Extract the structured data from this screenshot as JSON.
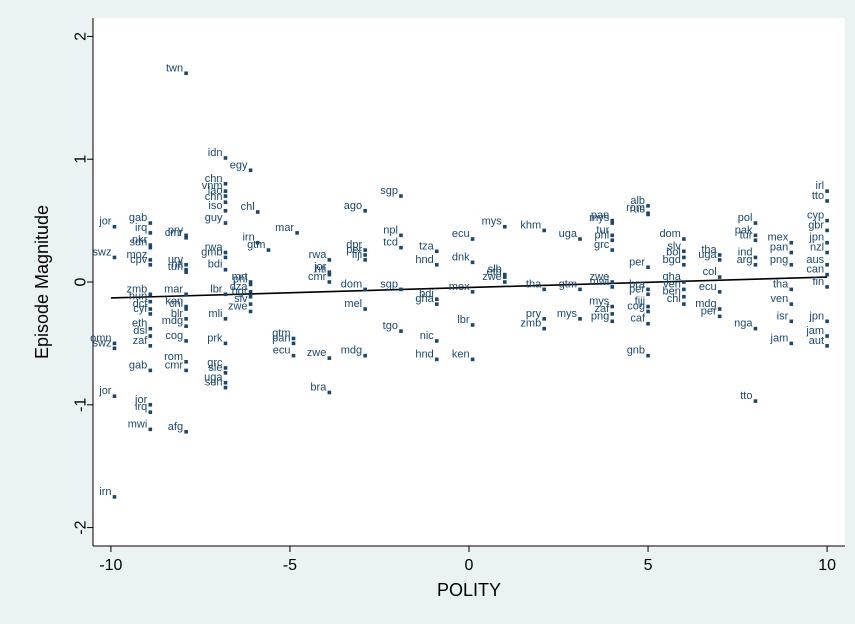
{
  "chart_data": {
    "type": "scatter",
    "xlabel": "POLITY",
    "ylabel": "Episode Magnitude",
    "xlim": [
      -10.5,
      10.5
    ],
    "ylim": [
      -2.15,
      2.15
    ],
    "xticks": [
      -10,
      -5,
      0,
      5,
      10
    ],
    "yticks": [
      -2,
      -1,
      0,
      1,
      2
    ],
    "grid": false,
    "legend": "none",
    "colors": {
      "point": "#1a476f",
      "fit_line": "#000000",
      "background": "#eaf2f3",
      "plot_bg": "#ffffff"
    },
    "fit_line": {
      "x": [
        -10,
        10
      ],
      "y": [
        -0.13,
        0.04
      ]
    },
    "points": [
      {
        "label": "twn",
        "x": -7.9,
        "y": 1.7
      },
      {
        "label": "idn",
        "x": -6.8,
        "y": 1.01
      },
      {
        "label": "egy",
        "x": -6.1,
        "y": 0.91
      },
      {
        "label": "chn",
        "x": -6.8,
        "y": 0.8
      },
      {
        "label": "vnm",
        "x": -6.8,
        "y": 0.74
      },
      {
        "label": "lao",
        "x": -6.8,
        "y": 0.7
      },
      {
        "label": "chn",
        "x": -6.8,
        "y": 0.65
      },
      {
        "label": "iso",
        "x": -6.8,
        "y": 0.58
      },
      {
        "label": "chl",
        "x": -5.9,
        "y": 0.57
      },
      {
        "label": "mar",
        "x": -4.8,
        "y": 0.4
      },
      {
        "label": "irn",
        "x": -5.9,
        "y": 0.32
      },
      {
        "label": "gtm",
        "x": -5.6,
        "y": 0.26
      },
      {
        "label": "rwa",
        "x": -6.8,
        "y": 0.24
      },
      {
        "label": "gab",
        "x": -8.9,
        "y": 0.48
      },
      {
        "label": "jor",
        "x": -9.9,
        "y": 0.45
      },
      {
        "label": "irq",
        "x": -8.9,
        "y": 0.4
      },
      {
        "label": "cmr",
        "x": -7.9,
        "y": 0.36
      },
      {
        "label": "pry",
        "x": -7.9,
        "y": 0.38
      },
      {
        "label": "nkr",
        "x": -8.9,
        "y": 0.3
      },
      {
        "label": "sdn",
        "x": -8.9,
        "y": 0.28
      },
      {
        "label": "swz",
        "x": -9.9,
        "y": 0.2
      },
      {
        "label": "moz",
        "x": -8.9,
        "y": 0.18
      },
      {
        "label": "cpv",
        "x": -8.9,
        "y": 0.14
      },
      {
        "label": "ury",
        "x": -7.9,
        "y": 0.14
      },
      {
        "label": "hti",
        "x": -7.9,
        "y": 0.1
      },
      {
        "label": "tun",
        "x": -7.9,
        "y": 0.08
      },
      {
        "label": "mrt",
        "x": -6.1,
        "y": 0.0
      },
      {
        "label": "phl",
        "x": -6.1,
        "y": -0.02
      },
      {
        "label": "dza",
        "x": -6.1,
        "y": -0.08
      },
      {
        "label": "bgr",
        "x": -6.1,
        "y": -0.12
      },
      {
        "label": "slv",
        "x": -6.1,
        "y": -0.18
      },
      {
        "label": "zwe",
        "x": -6.1,
        "y": -0.24
      },
      {
        "label": "zmb",
        "x": -8.9,
        "y": -0.1
      },
      {
        "label": "mar",
        "x": -7.9,
        "y": -0.1
      },
      {
        "label": "hun",
        "x": -8.9,
        "y": -0.16
      },
      {
        "label": "ken",
        "x": -7.9,
        "y": -0.2
      },
      {
        "label": "chl",
        "x": -7.9,
        "y": -0.22
      },
      {
        "label": "dcf",
        "x": -8.9,
        "y": -0.22
      },
      {
        "label": "cyf",
        "x": -8.9,
        "y": -0.26
      },
      {
        "label": "blr",
        "x": -7.9,
        "y": -0.3
      },
      {
        "label": "mdg",
        "x": -7.9,
        "y": -0.36
      },
      {
        "label": "eth",
        "x": -8.9,
        "y": -0.38
      },
      {
        "label": "dsl",
        "x": -8.9,
        "y": -0.44
      },
      {
        "label": "cog",
        "x": -7.9,
        "y": -0.48
      },
      {
        "label": "omn",
        "x": -9.9,
        "y": -0.5
      },
      {
        "label": "swz",
        "x": -9.9,
        "y": -0.54
      },
      {
        "label": "zaf",
        "x": -8.9,
        "y": -0.52
      },
      {
        "label": "rom",
        "x": -7.9,
        "y": -0.65
      },
      {
        "label": "cmr",
        "x": -7.9,
        "y": -0.72
      },
      {
        "label": "gab",
        "x": -8.9,
        "y": -0.72
      },
      {
        "label": "grc",
        "x": -6.8,
        "y": -0.7
      },
      {
        "label": "sle",
        "x": -6.8,
        "y": -0.74
      },
      {
        "label": "uga",
        "x": -6.8,
        "y": -0.82
      },
      {
        "label": "sdn",
        "x": -6.8,
        "y": -0.86
      },
      {
        "label": "jor",
        "x": -9.9,
        "y": -0.93
      },
      {
        "label": "jor",
        "x": -8.9,
        "y": -1.0
      },
      {
        "label": "irq",
        "x": -8.9,
        "y": -1.06
      },
      {
        "label": "mwi",
        "x": -8.9,
        "y": -1.2
      },
      {
        "label": "afg",
        "x": -7.9,
        "y": -1.22
      },
      {
        "label": "irn",
        "x": -9.9,
        "y": -1.75
      },
      {
        "label": "guy",
        "x": -6.8,
        "y": 0.48
      },
      {
        "label": "gmb",
        "x": -6.8,
        "y": 0.2
      },
      {
        "label": "bdi",
        "x": -6.8,
        "y": 0.1
      },
      {
        "label": "lbr",
        "x": -6.8,
        "y": -0.1
      },
      {
        "label": "mli",
        "x": -6.8,
        "y": -0.3
      },
      {
        "label": "prk",
        "x": -6.8,
        "y": -0.5
      },
      {
        "label": "gtm",
        "x": -4.9,
        "y": -0.46
      },
      {
        "label": "pan",
        "x": -4.9,
        "y": -0.5
      },
      {
        "label": "ecu",
        "x": -4.9,
        "y": -0.6
      },
      {
        "label": "zwe",
        "x": -3.9,
        "y": -0.62
      },
      {
        "label": "mdg",
        "x": -2.9,
        "y": -0.6
      },
      {
        "label": "bra",
        "x": -3.9,
        "y": -0.9
      },
      {
        "label": "rwa",
        "x": -3.9,
        "y": 0.18
      },
      {
        "label": "jor",
        "x": -3.9,
        "y": 0.08
      },
      {
        "label": "hti",
        "x": -3.9,
        "y": 0.06
      },
      {
        "label": "cmr",
        "x": -3.9,
        "y": 0.0
      },
      {
        "label": "dom",
        "x": -2.9,
        "y": -0.06
      },
      {
        "label": "mel",
        "x": -2.9,
        "y": -0.22
      },
      {
        "label": "tgo",
        "x": -1.9,
        "y": -0.4
      },
      {
        "label": "dpr",
        "x": -2.9,
        "y": 0.26
      },
      {
        "label": "per",
        "x": -2.9,
        "y": 0.22
      },
      {
        "label": "fiji",
        "x": -2.9,
        "y": 0.18
      },
      {
        "label": "ago",
        "x": -2.9,
        "y": 0.58
      },
      {
        "label": "sgp",
        "x": -1.9,
        "y": 0.7
      },
      {
        "label": "npl",
        "x": -1.9,
        "y": 0.38
      },
      {
        "label": "tcd",
        "x": -1.9,
        "y": 0.28
      },
      {
        "label": "sgp",
        "x": -1.9,
        "y": -0.06
      },
      {
        "label": "tza",
        "x": -0.9,
        "y": 0.25
      },
      {
        "label": "hnd",
        "x": -0.9,
        "y": 0.14
      },
      {
        "label": "bdi",
        "x": -0.9,
        "y": -0.14
      },
      {
        "label": "gha",
        "x": -0.9,
        "y": -0.18
      },
      {
        "label": "nic",
        "x": -0.9,
        "y": -0.48
      },
      {
        "label": "hnd",
        "x": -0.9,
        "y": -0.63
      },
      {
        "label": "ken",
        "x": 0.1,
        "y": -0.63
      },
      {
        "label": "lbr",
        "x": 0.1,
        "y": -0.35
      },
      {
        "label": "mex",
        "x": 0.1,
        "y": -0.08
      },
      {
        "label": "dnk",
        "x": 0.1,
        "y": 0.16
      },
      {
        "label": "ecu",
        "x": 0.1,
        "y": 0.35
      },
      {
        "label": "mys",
        "x": 1.0,
        "y": 0.45
      },
      {
        "label": "khm",
        "x": 2.1,
        "y": 0.42
      },
      {
        "label": "slb",
        "x": 1.0,
        "y": 0.06
      },
      {
        "label": "eth",
        "x": 1.0,
        "y": 0.04
      },
      {
        "label": "zwe",
        "x": 1.0,
        "y": 0.0
      },
      {
        "label": "tha",
        "x": 2.1,
        "y": -0.06
      },
      {
        "label": "gtm",
        "x": 3.1,
        "y": -0.06
      },
      {
        "label": "pry",
        "x": 2.1,
        "y": -0.3
      },
      {
        "label": "zmb",
        "x": 2.1,
        "y": -0.38
      },
      {
        "label": "mys",
        "x": 3.1,
        "y": -0.3
      },
      {
        "label": "uga",
        "x": 3.1,
        "y": 0.35
      },
      {
        "label": "mys",
        "x": 4.0,
        "y": 0.48
      },
      {
        "label": "pan",
        "x": 4.0,
        "y": 0.5
      },
      {
        "label": "alb",
        "x": 5.0,
        "y": 0.62
      },
      {
        "label": "rom",
        "x": 5.0,
        "y": 0.56
      },
      {
        "label": "rus",
        "x": 5.0,
        "y": 0.55
      },
      {
        "label": "tur",
        "x": 4.0,
        "y": 0.38
      },
      {
        "label": "phl",
        "x": 4.0,
        "y": 0.34
      },
      {
        "label": "grc",
        "x": 4.0,
        "y": 0.26
      },
      {
        "label": "zwe",
        "x": 4.0,
        "y": 0.0
      },
      {
        "label": "mwi",
        "x": 4.0,
        "y": -0.04
      },
      {
        "label": "mys",
        "x": 4.0,
        "y": -0.2
      },
      {
        "label": "zaf",
        "x": 4.0,
        "y": -0.26
      },
      {
        "label": "png",
        "x": 4.0,
        "y": -0.32
      },
      {
        "label": "per",
        "x": 5.0,
        "y": 0.12
      },
      {
        "label": "bra",
        "x": 5.0,
        "y": -0.06
      },
      {
        "label": "per",
        "x": 5.0,
        "y": -0.1
      },
      {
        "label": "fiji",
        "x": 5.0,
        "y": -0.2
      },
      {
        "label": "cog",
        "x": 5.0,
        "y": -0.24
      },
      {
        "label": "caf",
        "x": 5.0,
        "y": -0.34
      },
      {
        "label": "gnb",
        "x": 5.0,
        "y": -0.6
      },
      {
        "label": "dom",
        "x": 6.0,
        "y": 0.35
      },
      {
        "label": "slv",
        "x": 6.0,
        "y": 0.25
      },
      {
        "label": "bol",
        "x": 6.0,
        "y": 0.2
      },
      {
        "label": "bgd",
        "x": 6.0,
        "y": 0.14
      },
      {
        "label": "gha",
        "x": 6.0,
        "y": 0.0
      },
      {
        "label": "ven",
        "x": 6.0,
        "y": -0.06
      },
      {
        "label": "ben",
        "x": 6.0,
        "y": -0.12
      },
      {
        "label": "chl",
        "x": 6.0,
        "y": -0.18
      },
      {
        "label": "ecu",
        "x": 7.0,
        "y": -0.08
      },
      {
        "label": "mdg",
        "x": 7.0,
        "y": -0.22
      },
      {
        "label": "per",
        "x": 7.0,
        "y": -0.28
      },
      {
        "label": "tha",
        "x": 7.0,
        "y": 0.22
      },
      {
        "label": "uga",
        "x": 7.0,
        "y": 0.18
      },
      {
        "label": "col",
        "x": 7.0,
        "y": 0.04
      },
      {
        "label": "pol",
        "x": 8.0,
        "y": 0.48
      },
      {
        "label": "pak",
        "x": 8.0,
        "y": 0.38
      },
      {
        "label": "tur",
        "x": 8.0,
        "y": 0.34
      },
      {
        "label": "ind",
        "x": 8.0,
        "y": 0.2
      },
      {
        "label": "arg",
        "x": 8.0,
        "y": 0.14
      },
      {
        "label": "nga",
        "x": 8.0,
        "y": -0.38
      },
      {
        "label": "tto",
        "x": 8.0,
        "y": -0.97
      },
      {
        "label": "mex",
        "x": 9.0,
        "y": 0.32
      },
      {
        "label": "pan",
        "x": 9.0,
        "y": 0.24
      },
      {
        "label": "png",
        "x": 9.0,
        "y": 0.14
      },
      {
        "label": "tha",
        "x": 9.0,
        "y": -0.06
      },
      {
        "label": "ven",
        "x": 9.0,
        "y": -0.18
      },
      {
        "label": "isr",
        "x": 9.0,
        "y": -0.32
      },
      {
        "label": "jam",
        "x": 9.0,
        "y": -0.5
      },
      {
        "label": "irl",
        "x": 10.0,
        "y": 0.74
      },
      {
        "label": "tto",
        "x": 10.0,
        "y": 0.66
      },
      {
        "label": "cyp",
        "x": 10.0,
        "y": 0.5
      },
      {
        "label": "gbr",
        "x": 10.0,
        "y": 0.42
      },
      {
        "label": "jpn",
        "x": 10.0,
        "y": 0.32
      },
      {
        "label": "nzl",
        "x": 10.0,
        "y": 0.24
      },
      {
        "label": "aus",
        "x": 10.0,
        "y": 0.14
      },
      {
        "label": "can",
        "x": 10.0,
        "y": 0.06
      },
      {
        "label": "fin",
        "x": 10.0,
        "y": -0.04
      },
      {
        "label": "jpn",
        "x": 10.0,
        "y": -0.32
      },
      {
        "label": "jam",
        "x": 10.0,
        "y": -0.44
      },
      {
        "label": "aut",
        "x": 10.0,
        "y": -0.52
      }
    ]
  }
}
